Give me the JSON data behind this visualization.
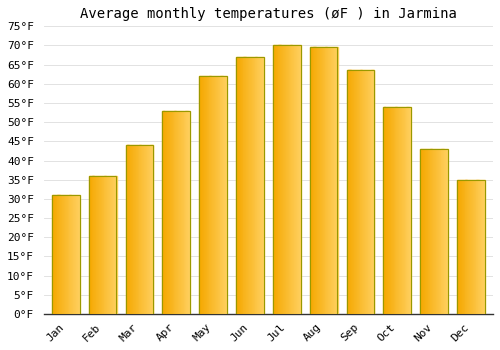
{
  "title": "Average monthly temperatures (øF ) in Jarmina",
  "months": [
    "Jan",
    "Feb",
    "Mar",
    "Apr",
    "May",
    "Jun",
    "Jul",
    "Aug",
    "Sep",
    "Oct",
    "Nov",
    "Dec"
  ],
  "values": [
    31,
    36,
    44,
    53,
    62,
    67,
    70,
    69.5,
    63.5,
    54,
    43,
    35
  ],
  "bar_color_left": "#F5A800",
  "bar_color_right": "#FFD060",
  "bar_edge_color": "#B8A000",
  "background_color": "#ffffff",
  "grid_color": "#dddddd",
  "ylim": [
    0,
    75
  ],
  "yticks": [
    0,
    5,
    10,
    15,
    20,
    25,
    30,
    35,
    40,
    45,
    50,
    55,
    60,
    65,
    70,
    75
  ],
  "title_fontsize": 10,
  "tick_fontsize": 8
}
